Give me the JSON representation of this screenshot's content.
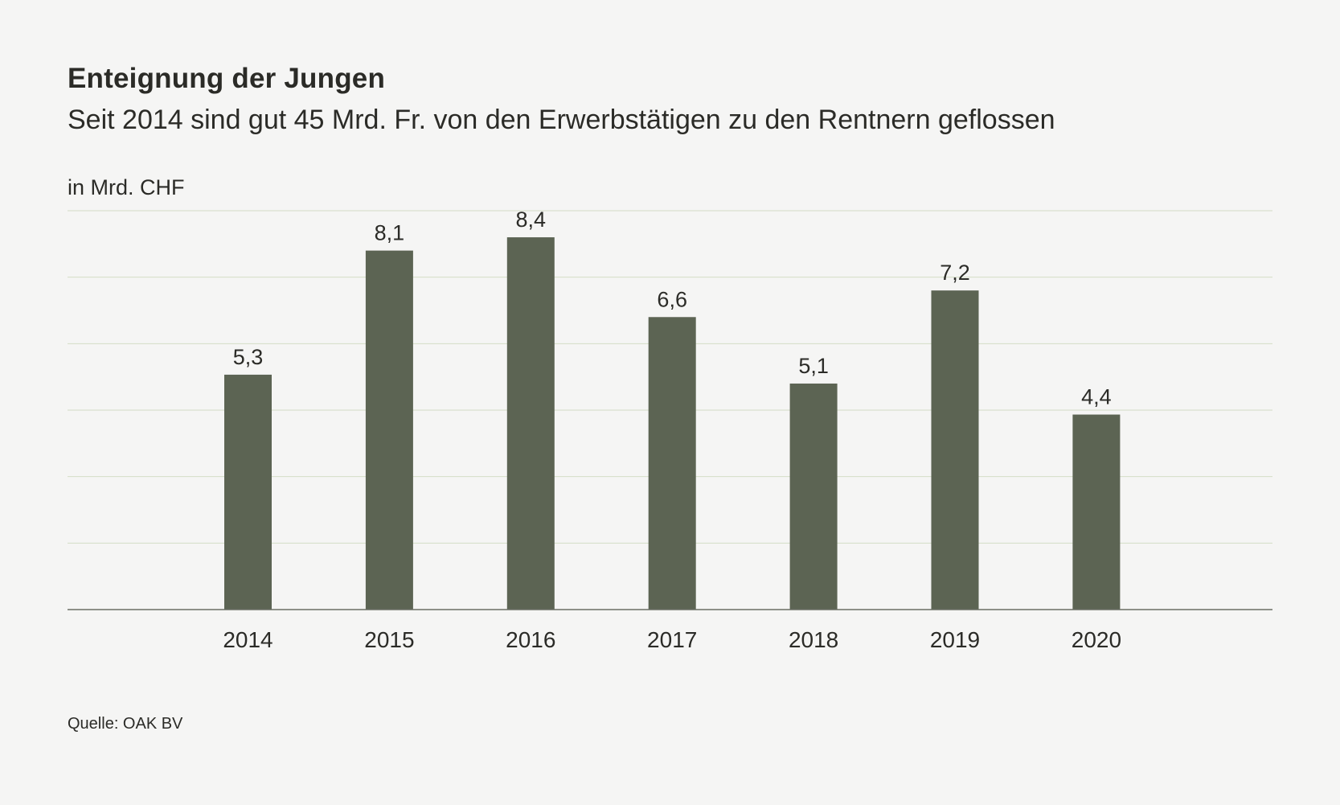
{
  "header": {
    "title": "Enteignung der Jungen",
    "subtitle": "Seit 2014 sind gut 45 Mrd. Fr. von den Erwerbstätigen zu den Rentnern geflossen"
  },
  "footer": {
    "source": "Quelle: OAK BV"
  },
  "colors": {
    "bar": "#5c6453",
    "gridline": "#d3dcc6",
    "axis": "#6b6f65",
    "background": "#f5f5f4"
  },
  "chart_data": {
    "type": "bar",
    "title": "Enteignung der Jungen",
    "subtitle": "Seit 2014 sind gut 45 Mrd. Fr. von den Erwerbstätigen zu den Rentnern geflossen",
    "ylabel": "in Mrd. CHF",
    "xlabel": "",
    "categories": [
      "2014",
      "2015",
      "2016",
      "2017",
      "2018",
      "2019",
      "2020"
    ],
    "values": [
      5.3,
      8.1,
      8.4,
      6.6,
      5.1,
      7.2,
      4.4
    ],
    "value_labels": [
      "5,3",
      "8,1",
      "8,4",
      "6,6",
      "5,1",
      "7,2",
      "4,4"
    ],
    "ylim": [
      0,
      9
    ],
    "y_gridlines": [
      1.5,
      3,
      4.5,
      6,
      7.5,
      9
    ],
    "y_tick_labels_shown": false,
    "grid": true,
    "legend": "none"
  }
}
